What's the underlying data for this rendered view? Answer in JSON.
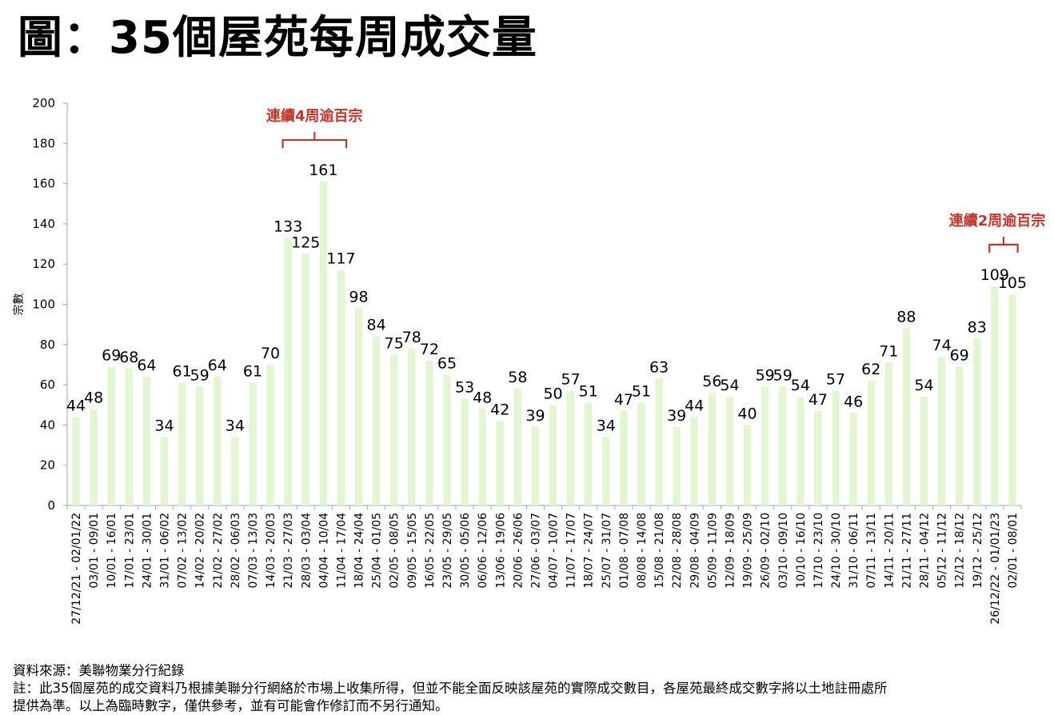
{
  "title": "圖：35個屋苑每周成交量",
  "footer": {
    "source": "資料來源：美聯物業分行紀錄",
    "note_line1": "註：此35個屋苑的成交資料乃根據美聯分行網絡於市場上收集所得，但並不能全面反映該屋苑的實際成交數目，各屋苑最終成交數字將以土地註冊處所",
    "note_line2": "提供為準。以上為臨時數字，僅供參考，並有可能會作修訂而不另行通知。"
  },
  "colors": {
    "bar": "#e2f6d2",
    "annotation": "#c0362c",
    "axis": "#a6a6a6"
  },
  "chart_data": {
    "type": "bar",
    "title": "",
    "xlabel": "",
    "ylabel": "宗數",
    "ylim": [
      0,
      200
    ],
    "yticks": [
      0,
      20,
      40,
      60,
      80,
      100,
      120,
      140,
      160,
      180,
      200
    ],
    "grid": false,
    "categories": [
      "27/12/21 - 02/01/22",
      "03/01 - 09/01",
      "10/01 - 16/01",
      "17/01 - 23/01",
      "24/01 - 30/01",
      "31/01 - 06/02",
      "07/02 - 13/02",
      "14/02 - 20/02",
      "21/02 - 27/02",
      "28/02 - 06/03",
      "07/03 - 13/03",
      "14/03 - 20/03",
      "21/03 - 27/03",
      "28/03 - 03/04",
      "04/04 - 10/04",
      "11/04 - 17/04",
      "18/04 - 24/04",
      "25/04 - 01/05",
      "02/05 - 08/05",
      "09/05 - 15/05",
      "16/05 - 22/05",
      "23/05 - 29/05",
      "30/05 - 05/06",
      "06/06 - 12/06",
      "13/06 - 19/06",
      "20/06 - 26/06",
      "27/06 - 03/07",
      "04/07 - 10/07",
      "11/07 - 17/07",
      "18/07 - 24/07",
      "25/07 - 31/07",
      "01/08 - 07/08",
      "08/08 - 14/08",
      "15/08 - 21/08",
      "22/08 - 28/08",
      "29/08 - 04/09",
      "05/09 - 11/09",
      "12/09 - 18/09",
      "19/09 - 25/09",
      "26/09 - 02/10",
      "03/10 - 09/10",
      "10/10 - 16/10",
      "17/10 - 23/10",
      "24/10 - 30/10",
      "31/10 - 06/11",
      "07/11 - 13/11",
      "14/11 - 20/11",
      "21/11 - 27/11",
      "28/11 - 04/12",
      "05/12 - 11/12",
      "12/12 - 18/12",
      "19/12 - 25/12",
      "26/12/22 - 01/01/23",
      "02/01 - 08/01"
    ],
    "values": [
      44,
      48,
      69,
      68,
      64,
      34,
      61,
      59,
      64,
      34,
      61,
      70,
      133,
      125,
      161,
      117,
      98,
      84,
      75,
      78,
      72,
      65,
      53,
      48,
      42,
      58,
      39,
      50,
      57,
      51,
      34,
      47,
      51,
      63,
      39,
      44,
      56,
      54,
      40,
      59,
      59,
      54,
      47,
      57,
      46,
      62,
      71,
      88,
      54,
      74,
      69,
      83,
      109,
      105
    ],
    "annotations": [
      {
        "text": "連續4周逾百宗",
        "from_index": 12,
        "to_index": 15
      },
      {
        "text": "連續2周逾百宗",
        "from_index": 52,
        "to_index": 53
      }
    ]
  }
}
